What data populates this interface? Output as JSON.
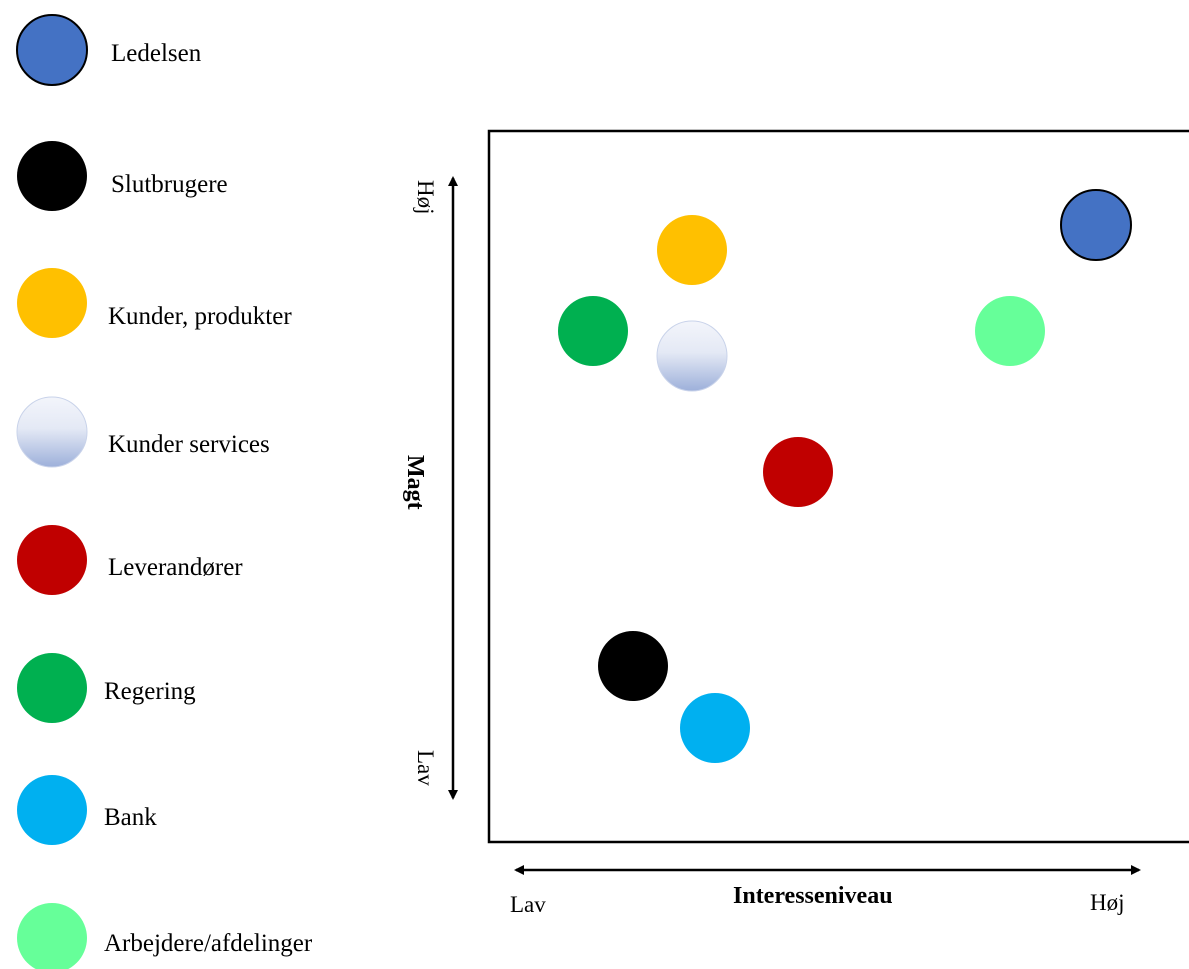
{
  "colors": {
    "ledelsen": "#4472C4",
    "slutbrugere": "#000000",
    "kunder_produkter": "#FFC000",
    "kunder_services_top": "#F3F5FB",
    "kunder_services_bottom": "#9DB0DA",
    "leverandorer": "#C00000",
    "regering": "#00B050",
    "bank": "#00B0F0",
    "arbejdere": "#66FF99"
  },
  "legend": [
    {
      "key": "ledelsen",
      "label": "Ledelsen",
      "outlined": true
    },
    {
      "key": "slutbrugere",
      "label": "Slutbrugere",
      "outlined": false
    },
    {
      "key": "kunder_produkter",
      "label": "Kunder, produkter",
      "outlined": false
    },
    {
      "key": "kunder_services",
      "label": "Kunder services",
      "outlined": false
    },
    {
      "key": "leverandorer",
      "label": "Leverandører",
      "outlined": false
    },
    {
      "key": "regering",
      "label": "Regering",
      "outlined": false
    },
    {
      "key": "bank",
      "label": "Bank",
      "outlined": false
    },
    {
      "key": "arbejdere",
      "label": "Arbejdere/afdelinger",
      "outlined": false
    }
  ],
  "axes": {
    "y_label": "Magt",
    "y_high": "Høj",
    "y_low": "Lav",
    "x_label": "Interesseniveau",
    "x_low": "Lav",
    "x_high": "Høj"
  }
}
